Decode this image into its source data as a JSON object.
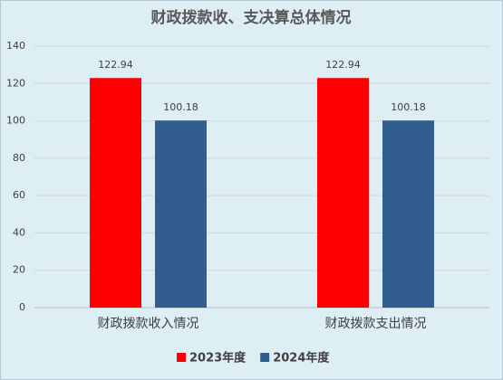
{
  "chart_data": {
    "type": "bar",
    "title": "财政拨款收、支决算总体情况",
    "categories": [
      "财政拨款收入情况",
      "财政拨款支出情况"
    ],
    "series": [
      {
        "name": "2023年度",
        "color": "#ff0000",
        "values": [
          122.94,
          122.94
        ]
      },
      {
        "name": "2024年度",
        "color": "#335c8f",
        "values": [
          100.18,
          100.18
        ]
      }
    ],
    "ylim": [
      0,
      140
    ],
    "yticks": [
      0,
      20,
      40,
      60,
      80,
      100,
      120,
      140
    ],
    "grid": true,
    "legend": "bottom"
  }
}
